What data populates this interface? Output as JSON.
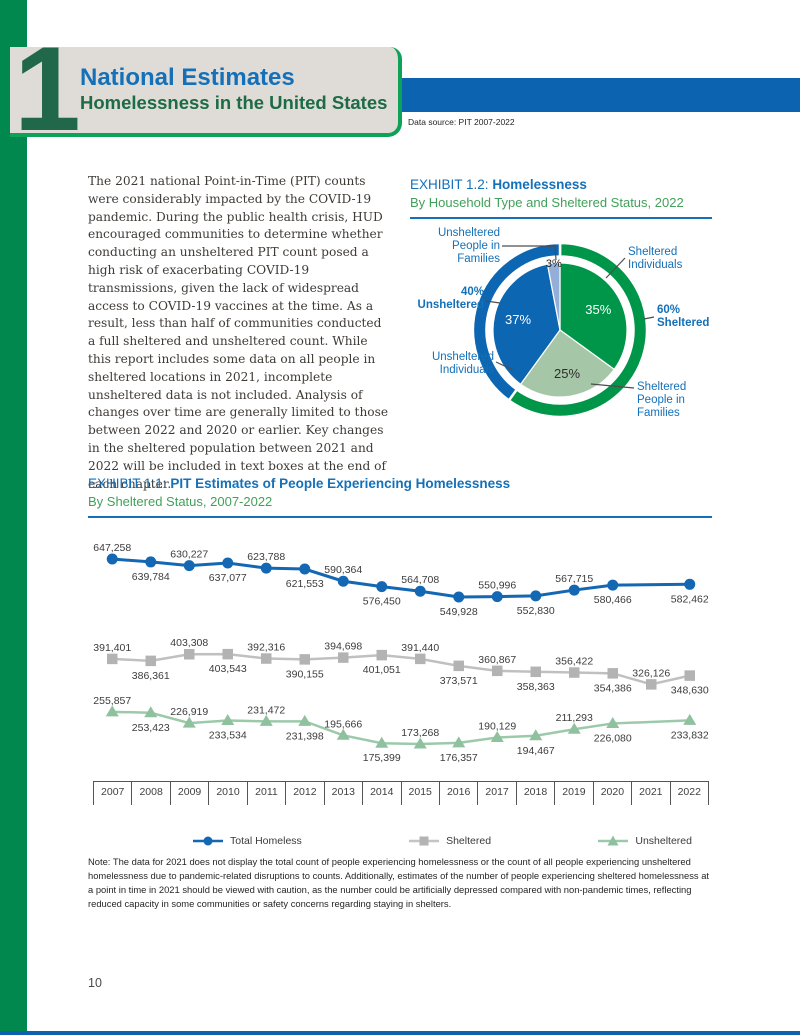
{
  "page_number": "10",
  "header": {
    "chapter_number": "1",
    "title": "National Estimates",
    "subtitle": "Homelessness in the United States",
    "data_source": "Data source: PIT 2007-2022",
    "accent_blue": "#0c63af",
    "accent_green": "#00884e"
  },
  "intro_paragraph": "The 2021 national Point-in-Time (PIT) counts were considerably impacted by the COVID-19 pandemic. During the public health crisis, HUD encouraged communities to determine whether conducting an unsheltered PIT count posed a high risk of exacerbating COVID-19 transmissions, given the lack of widespread access to COVID-19 vaccines at the time. As a result, less than half of communities conducted a full sheltered and unsheltered count. While this report includes some data on all people in sheltered locations in 2021, incomplete unsheltered data is not included. Analysis of changes over time are generally limited to those between 2022 and 2020 or earlier. Key changes in the sheltered population between 2021 and 2022 will be included in text boxes at the end of each chapter.",
  "exhibit_1_2": {
    "label": "EXHIBIT 1.2:",
    "title": "Homelessness",
    "subtitle": "By Household Type and Sheltered Status, 2022"
  },
  "exhibit_1_1": {
    "label": "EXHIBIT 1.1:",
    "title": "PIT Estimates of People Experiencing Homelessness",
    "subtitle": "By Sheltered Status, 2007-2022"
  },
  "note": "Note: The data for 2021 does not display the total count of people experiencing homelessness or the count of all people experiencing unsheltered homelessness due to pandemic-related disruptions to counts. Additionally, estimates of the number of people experiencing sheltered homelessness at a point in time in 2021 should be viewed with caution, as the number could be artificially depressed compared with non-pandemic times, reflecting reduced capacity in some communities or safety concerns regarding staying in shelters.",
  "chart_data": [
    {
      "type": "pie",
      "title": "EXHIBIT 1.2: Homelessness",
      "subtitle": "By Household Type and Sheltered Status, 2022",
      "slices": [
        {
          "label": "Sheltered Individuals",
          "value": 35,
          "pct_label": "35%",
          "color": "#009649"
        },
        {
          "label": "Sheltered People in Families",
          "value": 25,
          "pct_label": "25%",
          "color": "#a6c6a8"
        },
        {
          "label": "Unsheltered Individuals",
          "value": 37,
          "pct_label": "37%",
          "color": "#0d66b1"
        },
        {
          "label": "Unsheltered People in Families",
          "value": 3,
          "pct_label": "3%",
          "color": "#93afd8"
        }
      ],
      "outer_ring": [
        {
          "label": "60% Sheltered",
          "value": 60,
          "color": "#009649"
        },
        {
          "label": "40% Unsheltered",
          "value": 40,
          "color": "#0d66b1"
        }
      ],
      "callout_labels": [
        {
          "id": "unsheltered-people-in-families",
          "lines": [
            "Unsheltered",
            "People in",
            "Families"
          ],
          "bold": false
        },
        {
          "id": "sheltered-individuals",
          "lines": [
            "Sheltered",
            "Individuals"
          ],
          "bold": false
        },
        {
          "id": "pct-unsheltered",
          "lines": [
            "40%",
            "Unsheltered"
          ],
          "bold": true
        },
        {
          "id": "pct-sheltered",
          "lines": [
            "60%",
            "Sheltered"
          ],
          "bold": true
        },
        {
          "id": "unsheltered-individuals",
          "lines": [
            "Unsheltered",
            "Individuals"
          ],
          "bold": false
        },
        {
          "id": "sheltered-people-in-families",
          "lines": [
            "Sheltered",
            "People in",
            "Families"
          ],
          "bold": false
        }
      ]
    },
    {
      "type": "line",
      "title": "EXHIBIT 1.1: PIT Estimates of People Experiencing Homelessness",
      "subtitle": "By Sheltered Status, 2007-2022",
      "categories": [
        "2007",
        "2008",
        "2009",
        "2010",
        "2011",
        "2012",
        "2013",
        "2014",
        "2015",
        "2016",
        "2017",
        "2018",
        "2019",
        "2020",
        "2021",
        "2022"
      ],
      "series": [
        {
          "name": "Total Homeless",
          "marker": "circle",
          "color": "#1467b2",
          "values": [
            647258,
            639784,
            630227,
            637077,
            623788,
            621553,
            590364,
            576450,
            564708,
            549928,
            550996,
            552830,
            567715,
            580466,
            null,
            582462
          ]
        },
        {
          "name": "Sheltered",
          "marker": "square",
          "color": "#b3b3b3",
          "values": [
            391401,
            386361,
            403308,
            403543,
            392316,
            390155,
            394698,
            401051,
            391440,
            373571,
            360867,
            358363,
            356422,
            354386,
            326126,
            348630
          ]
        },
        {
          "name": "Unsheltered",
          "marker": "triangle",
          "color": "#8fc19f",
          "values": [
            255857,
            253423,
            226919,
            233534,
            231472,
            231398,
            195666,
            175399,
            173268,
            176357,
            190129,
            194467,
            211293,
            226080,
            null,
            233832
          ]
        }
      ],
      "grid": false,
      "legend_position": "bottom"
    }
  ]
}
